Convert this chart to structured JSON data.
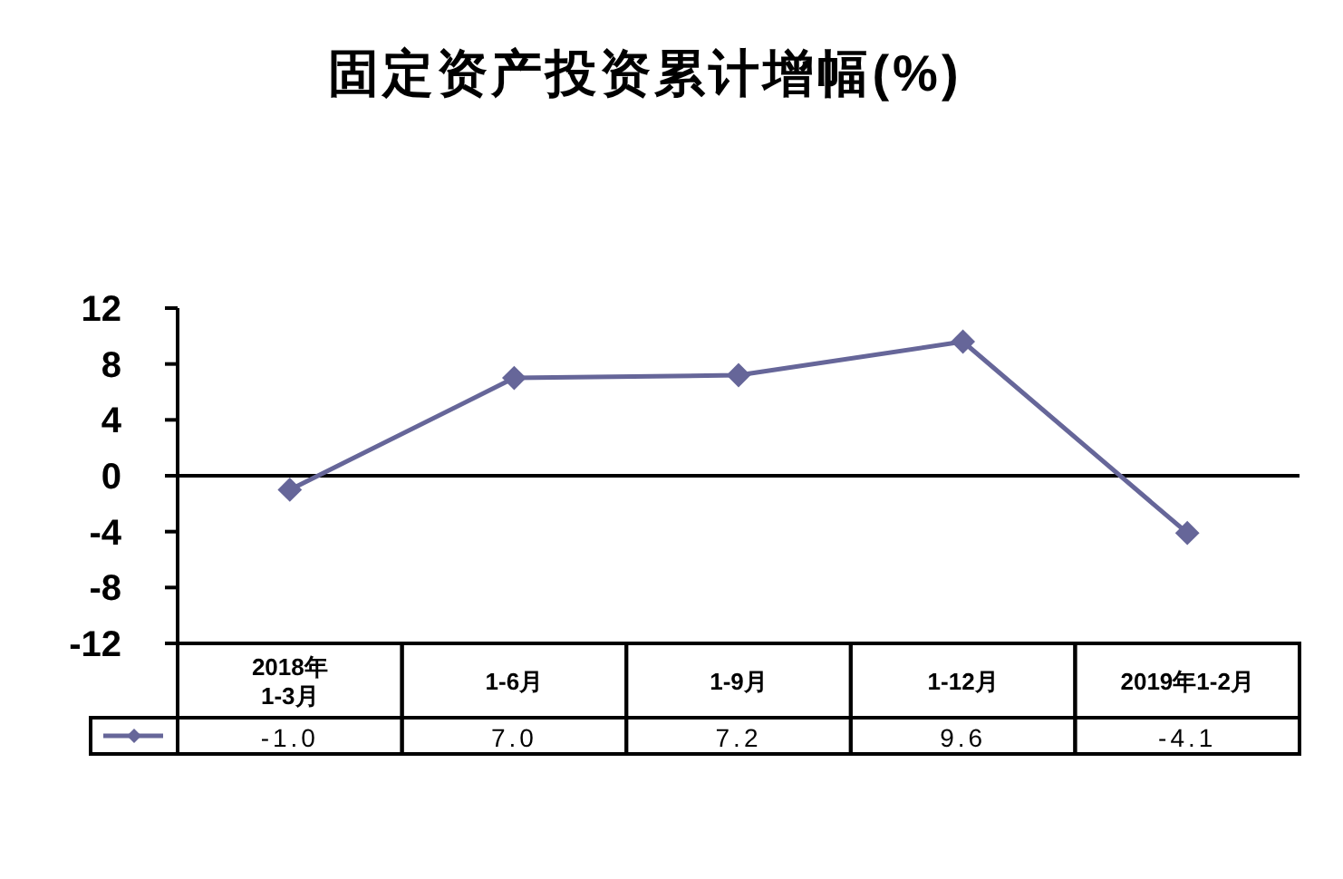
{
  "chart_data": {
    "type": "line",
    "title": "固定资产投资累计增幅(%)",
    "categories": [
      "2018年\n1-3月",
      "1-6月",
      "1-9月",
      "1-12月",
      "2019年1-2月"
    ],
    "series": [
      {
        "color": "#666699",
        "values": [
          -1.0,
          7.0,
          7.2,
          9.6,
          -4.1
        ],
        "value_labels": [
          "-1.0",
          "7.0",
          "7.2",
          "9.6",
          "-4.1"
        ]
      }
    ],
    "ylim": [
      -12,
      12
    ],
    "yticks": [
      -12,
      -8,
      -4,
      0,
      4,
      8,
      12
    ],
    "ref_lines": [
      {
        "axis": "y",
        "value": 0,
        "color": "#000000"
      }
    ],
    "marker": "diamond",
    "line_style": "solid"
  }
}
